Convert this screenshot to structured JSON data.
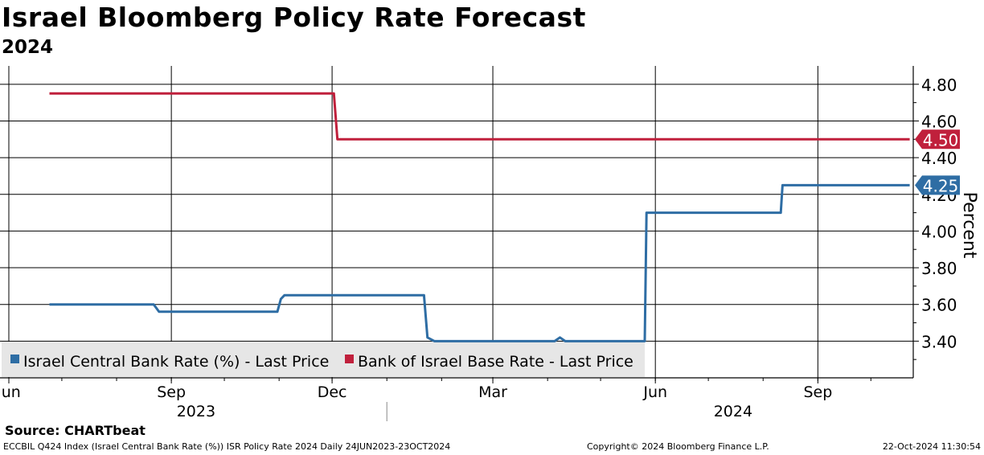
{
  "title": "Israel Bloomberg Policy Rate Forecast",
  "subtitle": "2024",
  "source": "Source: CHARTbeat",
  "footer": {
    "left": "ECCBIL Q424 Index (Israel Central Bank Rate (%)) ISR Policy Rate 2024  Daily 24JUN2023-23OCT2024",
    "middle": "Copyright© 2024 Bloomberg Finance L.P.",
    "right": "22-Oct-2024 11:30:54"
  },
  "chart_data": {
    "type": "line",
    "title": "Israel Bloomberg Policy Rate Forecast",
    "subtitle": "2024",
    "ylabel": "Percent",
    "ylim": [
      3.2,
      4.9
    ],
    "yticks": [
      "4.80",
      "4.60",
      "4.40",
      "4.20",
      "4.00",
      "3.80",
      "3.60",
      "3.40"
    ],
    "xlim": [
      "2023-05-27",
      "2024-10-25"
    ],
    "x_ticks": [
      {
        "date": "2023-06-01",
        "label": "Jun"
      },
      {
        "date": "2023-09-01",
        "label": "Sep"
      },
      {
        "date": "2023-12-01",
        "label": "Dec"
      },
      {
        "date": "2024-03-01",
        "label": "Mar"
      },
      {
        "date": "2024-06-01",
        "label": "Jun"
      },
      {
        "date": "2024-09-01",
        "label": "Sep"
      }
    ],
    "year_labels": [
      {
        "date": "2023-09-15",
        "label": "2023"
      },
      {
        "date": "2024-07-15",
        "label": "2024"
      }
    ],
    "grid": true,
    "legend_position": "bottom-left",
    "series": [
      {
        "name": "Israel Central Bank Rate (%) - Last Price",
        "color": "#2e6da4",
        "last_value_label": "4.25",
        "points": [
          [
            "2023-06-24",
            3.6
          ],
          [
            "2023-08-22",
            3.6
          ],
          [
            "2023-08-25",
            3.56
          ],
          [
            "2023-10-31",
            3.56
          ],
          [
            "2023-11-02",
            3.63
          ],
          [
            "2023-11-04",
            3.65
          ],
          [
            "2024-01-22",
            3.65
          ],
          [
            "2024-01-24",
            3.42
          ],
          [
            "2024-01-28",
            3.4
          ],
          [
            "2024-04-05",
            3.4
          ],
          [
            "2024-04-08",
            3.42
          ],
          [
            "2024-04-11",
            3.4
          ],
          [
            "2024-05-26",
            3.4
          ],
          [
            "2024-05-27",
            4.1
          ],
          [
            "2024-08-11",
            4.1
          ],
          [
            "2024-08-12",
            4.25
          ],
          [
            "2024-10-23",
            4.25
          ]
        ]
      },
      {
        "name": "Bank of Israel Base Rate - Last Price",
        "color": "#c0203c",
        "last_value_label": "4.50",
        "points": [
          [
            "2023-06-24",
            4.75
          ],
          [
            "2023-12-02",
            4.75
          ],
          [
            "2023-12-04",
            4.5
          ],
          [
            "2024-10-23",
            4.5
          ]
        ]
      }
    ]
  }
}
